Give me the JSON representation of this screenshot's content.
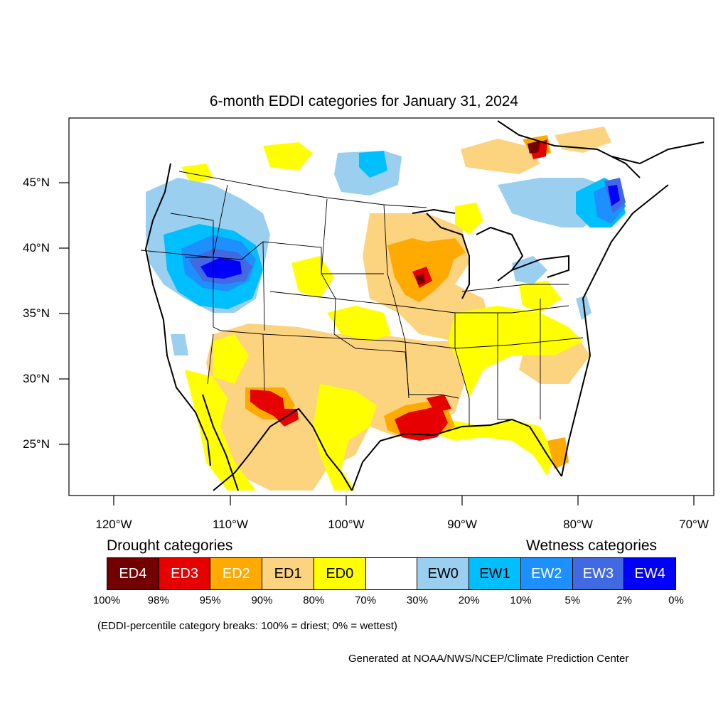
{
  "title": "6-month EDDI categories for January 31, 2024",
  "lon_labels": [
    "120°W",
    "110°W",
    "100°W",
    "90°W",
    "80°W",
    "70°W"
  ],
  "lat_labels": [
    "45°N",
    "40°N",
    "35°N",
    "30°N",
    "25°N"
  ],
  "legend": {
    "drought_heading": "Drought categories",
    "wetness_heading": "Wetness categories",
    "categories": [
      {
        "label": "ED4",
        "color": "#730000",
        "text_color": "#ffffff"
      },
      {
        "label": "ED3",
        "color": "#e60000",
        "text_color": "#ffffff"
      },
      {
        "label": "ED2",
        "color": "#ffaa00",
        "text_color": "#ffffff"
      },
      {
        "label": "ED1",
        "color": "#fcd37f",
        "text_color": "#000000"
      },
      {
        "label": "ED0",
        "color": "#ffff00",
        "text_color": "#000000"
      },
      {
        "label": "",
        "color": "#ffffff",
        "text_color": "#000000"
      },
      {
        "label": "EW0",
        "color": "#9bcff0",
        "text_color": "#000000"
      },
      {
        "label": "EW1",
        "color": "#00bfff",
        "text_color": "#000000"
      },
      {
        "label": "EW2",
        "color": "#1e8fff",
        "text_color": "#ffffff"
      },
      {
        "label": "EW3",
        "color": "#4169e1",
        "text_color": "#ffffff"
      },
      {
        "label": "EW4",
        "color": "#0000ff",
        "text_color": "#ffffff"
      }
    ],
    "percentiles": [
      "100%",
      "98%",
      "95%",
      "90%",
      "80%",
      "70%",
      "30%",
      "20%",
      "10%",
      "5%",
      "2%",
      "0%"
    ]
  },
  "note": "(EDDI-percentile category breaks: 100% = driest; 0% = wettest)",
  "credit": "Generated at NOAA/NWS/NCEP/Climate Prediction Center"
}
